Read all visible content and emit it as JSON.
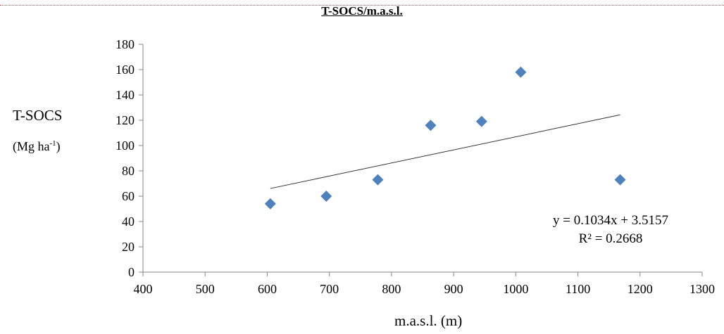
{
  "chart_data": {
    "type": "scatter",
    "title": "T-SOCS/m.a.s.l.",
    "ylabel_line1": "T-SOCS",
    "ylabel_line2_main": "(Mg ha",
    "ylabel_line2_sup": "-1",
    "ylabel_line2_end": ")",
    "xlabel": "m.a.s.l. (m)",
    "xlim": [
      400,
      1300
    ],
    "ylim": [
      0,
      180
    ],
    "xticks": [
      400,
      500,
      600,
      700,
      800,
      900,
      1000,
      1100,
      1200,
      1300
    ],
    "yticks": [
      0,
      20,
      40,
      60,
      80,
      100,
      120,
      140,
      160,
      180
    ],
    "points": [
      {
        "x": 605,
        "y": 54
      },
      {
        "x": 695,
        "y": 60
      },
      {
        "x": 778,
        "y": 73
      },
      {
        "x": 863,
        "y": 116
      },
      {
        "x": 945,
        "y": 119
      },
      {
        "x": 1008,
        "y": 158
      },
      {
        "x": 1168,
        "y": 73
      }
    ],
    "trendline": {
      "slope": 0.1034,
      "intercept": 3.5157,
      "x_range": [
        605,
        1168
      ],
      "equation_label": "y = 0.1034x + 3.5157",
      "r2_label": "R² = 0.2668"
    },
    "marker_color": "#4f81bd",
    "grid": false,
    "legend": "none"
  }
}
